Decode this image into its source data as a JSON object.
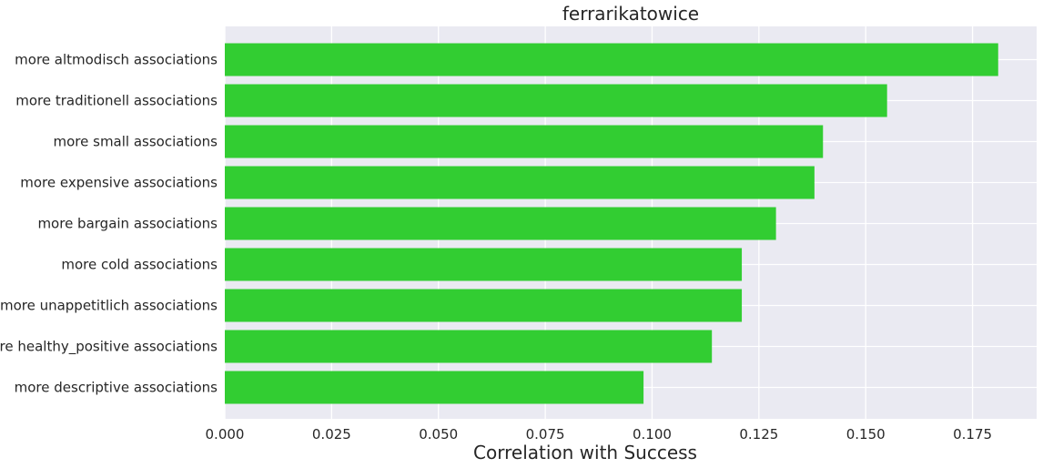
{
  "chart_data": {
    "type": "bar",
    "orientation": "horizontal",
    "title": "ferrarikatowice",
    "xlabel": "Correlation with Success",
    "ylabel": "",
    "categories": [
      "more altmodisch associations",
      "more traditionell associations",
      "more small associations",
      "more expensive associations",
      "more bargain associations",
      "more cold associations",
      "more unappetitlich associations",
      "more healthy_positive associations",
      "more descriptive associations"
    ],
    "values": [
      0.181,
      0.155,
      0.14,
      0.138,
      0.129,
      0.121,
      0.121,
      0.114,
      0.098
    ],
    "xlim": [
      0,
      0.19
    ],
    "xticks": [
      0.0,
      0.025,
      0.05,
      0.075,
      0.1,
      0.125,
      0.15,
      0.175
    ],
    "xtick_labels": [
      "0.000",
      "0.025",
      "0.050",
      "0.075",
      "0.100",
      "0.125",
      "0.150",
      "0.175"
    ],
    "grid": true,
    "colors": {
      "bar": "#32cd32",
      "plot_background": "#eaeaf2",
      "grid": "#ffffff",
      "text": "#262626"
    }
  }
}
